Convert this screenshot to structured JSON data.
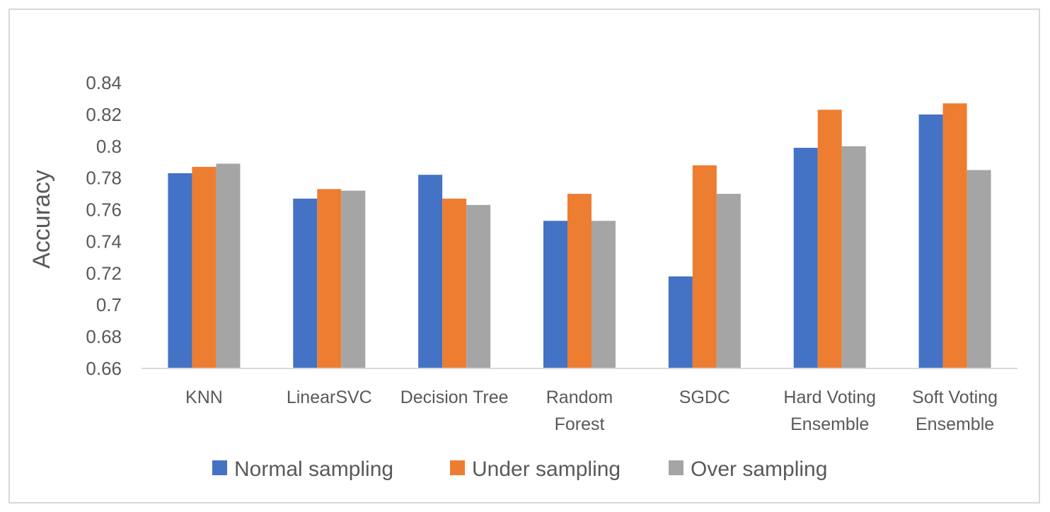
{
  "chart_data": {
    "type": "bar",
    "title": "",
    "xlabel": "",
    "ylabel": "Accuracy",
    "ylim": [
      0.66,
      0.84
    ],
    "yticks": [
      0.66,
      0.68,
      0.7,
      0.72,
      0.74,
      0.76,
      0.78,
      0.8,
      0.82,
      0.84
    ],
    "ytick_labels": [
      "0.66",
      "0.68",
      "0.7",
      "0.72",
      "0.74",
      "0.76",
      "0.78",
      "0.8",
      "0.82",
      "0.84"
    ],
    "categories": [
      [
        "KNN"
      ],
      [
        "LinearSVC"
      ],
      [
        "Decision Tree"
      ],
      [
        "Random",
        "Forest"
      ],
      [
        "SGDC"
      ],
      [
        "Hard Voting",
        "Ensemble"
      ],
      [
        "Soft Voting",
        "Ensemble"
      ]
    ],
    "series": [
      {
        "name": "Normal sampling",
        "color": "#4472c4",
        "values": [
          0.783,
          0.767,
          0.782,
          0.753,
          0.718,
          0.799,
          0.82
        ]
      },
      {
        "name": "Under sampling",
        "color": "#ed7d31",
        "values": [
          0.787,
          0.773,
          0.767,
          0.77,
          0.788,
          0.823,
          0.827
        ]
      },
      {
        "name": "Over sampling",
        "color": "#a5a5a5",
        "values": [
          0.789,
          0.772,
          0.763,
          0.753,
          0.77,
          0.8,
          0.785
        ]
      }
    ],
    "legend_position": "bottom",
    "grid": false
  }
}
